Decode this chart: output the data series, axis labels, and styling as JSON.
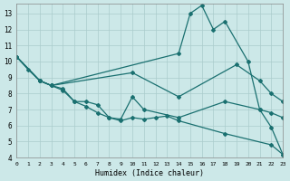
{
  "xlabel": "Humidex (Indice chaleur)",
  "bg_color": "#cce8e8",
  "grid_color": "#aacccc",
  "line_color": "#1a7070",
  "xlim": [
    0,
    23
  ],
  "ylim": [
    4,
    13.6
  ],
  "yticks": [
    4,
    5,
    6,
    7,
    8,
    9,
    10,
    11,
    12,
    13
  ],
  "xticks": [
    0,
    1,
    2,
    3,
    4,
    5,
    6,
    7,
    8,
    9,
    10,
    11,
    12,
    13,
    14,
    15,
    16,
    17,
    18,
    19,
    20,
    21,
    22,
    23
  ],
  "lines": [
    {
      "x": [
        0,
        1,
        2,
        3,
        14,
        15,
        16,
        17,
        18,
        20,
        21,
        22,
        23
      ],
      "y": [
        10.3,
        9.5,
        8.8,
        8.5,
        10.5,
        13.0,
        13.5,
        12.0,
        12.5,
        10.0,
        7.0,
        5.9,
        4.2
      ]
    },
    {
      "x": [
        0,
        2,
        3,
        10,
        14,
        19,
        21,
        22,
        23
      ],
      "y": [
        10.3,
        8.8,
        8.5,
        9.3,
        7.8,
        9.8,
        8.8,
        8.0,
        7.5
      ]
    },
    {
      "x": [
        0,
        2,
        3,
        4,
        5,
        6,
        7,
        8,
        9,
        10,
        11,
        14,
        18,
        21,
        22,
        23
      ],
      "y": [
        10.3,
        8.8,
        8.5,
        8.3,
        7.5,
        7.5,
        7.3,
        6.5,
        6.4,
        7.8,
        7.0,
        6.5,
        7.5,
        7.0,
        6.8,
        6.5
      ]
    },
    {
      "x": [
        0,
        2,
        3,
        4,
        5,
        6,
        7,
        8,
        9,
        10,
        11,
        12,
        13,
        14,
        18,
        22,
        23
      ],
      "y": [
        10.3,
        8.8,
        8.5,
        8.2,
        7.5,
        7.2,
        6.8,
        6.5,
        6.3,
        6.5,
        6.4,
        6.5,
        6.6,
        6.3,
        5.5,
        4.8,
        4.2
      ]
    }
  ]
}
